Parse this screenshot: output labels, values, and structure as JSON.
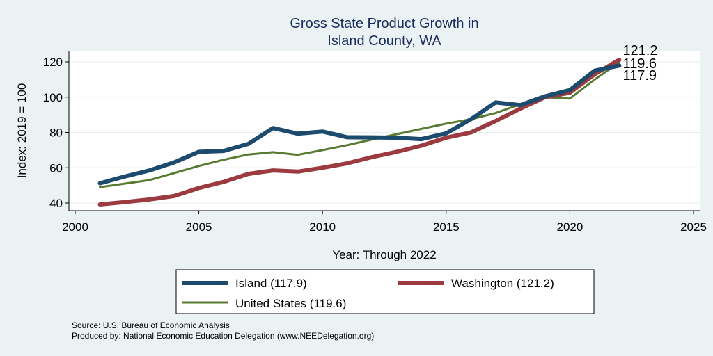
{
  "chart_data": {
    "type": "line",
    "title": [
      "Gross State Product Growth in",
      "Island County, WA"
    ],
    "xlabel": "Year: Through 2022",
    "ylabel": "Index: 2019 = 100",
    "xlim": [
      2000,
      2025
    ],
    "ylim": [
      35,
      127
    ],
    "xticks": [
      2000,
      2005,
      2010,
      2015,
      2020,
      2025
    ],
    "yticks": [
      40,
      60,
      80,
      100,
      120
    ],
    "grid": true,
    "series": [
      {
        "name": "United States",
        "legend_label": "United States (119.6)",
        "color": "#5a7a32",
        "x": [
          2001,
          2002,
          2003,
          2004,
          2005,
          2006,
          2007,
          2008,
          2009,
          2010,
          2011,
          2012,
          2013,
          2014,
          2015,
          2016,
          2017,
          2018,
          2019,
          2020,
          2021,
          2022
        ],
        "values": [
          49,
          51,
          53,
          57,
          61,
          64.5,
          67.5,
          68.8,
          67.3,
          70,
          72.8,
          76,
          79,
          82,
          85,
          87.5,
          91,
          96,
          100,
          99.2,
          110,
          119.6
        ],
        "end_label": "119.6"
      },
      {
        "name": "Washington",
        "legend_label": "Washington (121.2)",
        "color": "#9b3b40",
        "x": [
          2001,
          2002,
          2003,
          2004,
          2005,
          2006,
          2007,
          2008,
          2009,
          2010,
          2011,
          2012,
          2013,
          2014,
          2015,
          2016,
          2017,
          2018,
          2019,
          2020,
          2021,
          2022
        ],
        "values": [
          39.2,
          40.5,
          42,
          44,
          48.5,
          52,
          56.5,
          58.5,
          57.8,
          60,
          62.5,
          66,
          69,
          72.5,
          77,
          80,
          86.5,
          93.5,
          100,
          102.5,
          113,
          121.2
        ],
        "end_label": "121.2"
      },
      {
        "name": "Island",
        "legend_label": "Island  (117.9)",
        "color": "#1d4b6e",
        "x": [
          2001,
          2002,
          2003,
          2004,
          2005,
          2006,
          2007,
          2008,
          2009,
          2010,
          2011,
          2012,
          2013,
          2014,
          2015,
          2016,
          2017,
          2018,
          2019,
          2020,
          2021,
          2022
        ],
        "values": [
          51.2,
          55,
          58.5,
          63,
          69,
          69.5,
          73.5,
          82.5,
          79.3,
          80.5,
          77.3,
          77.2,
          77,
          76.2,
          79.5,
          87.5,
          97,
          95.5,
          100.5,
          104,
          115,
          117.9
        ],
        "end_label": "117.9"
      }
    ],
    "legend": {
      "placement": "bottom",
      "order": [
        "Island",
        "Washington",
        "United States"
      ]
    },
    "notes": [
      "Source: U.S. Bureau of Economic Analysis",
      "Produced by: National Economic Education Delegation (www.NEEDelegation.org)"
    ]
  }
}
